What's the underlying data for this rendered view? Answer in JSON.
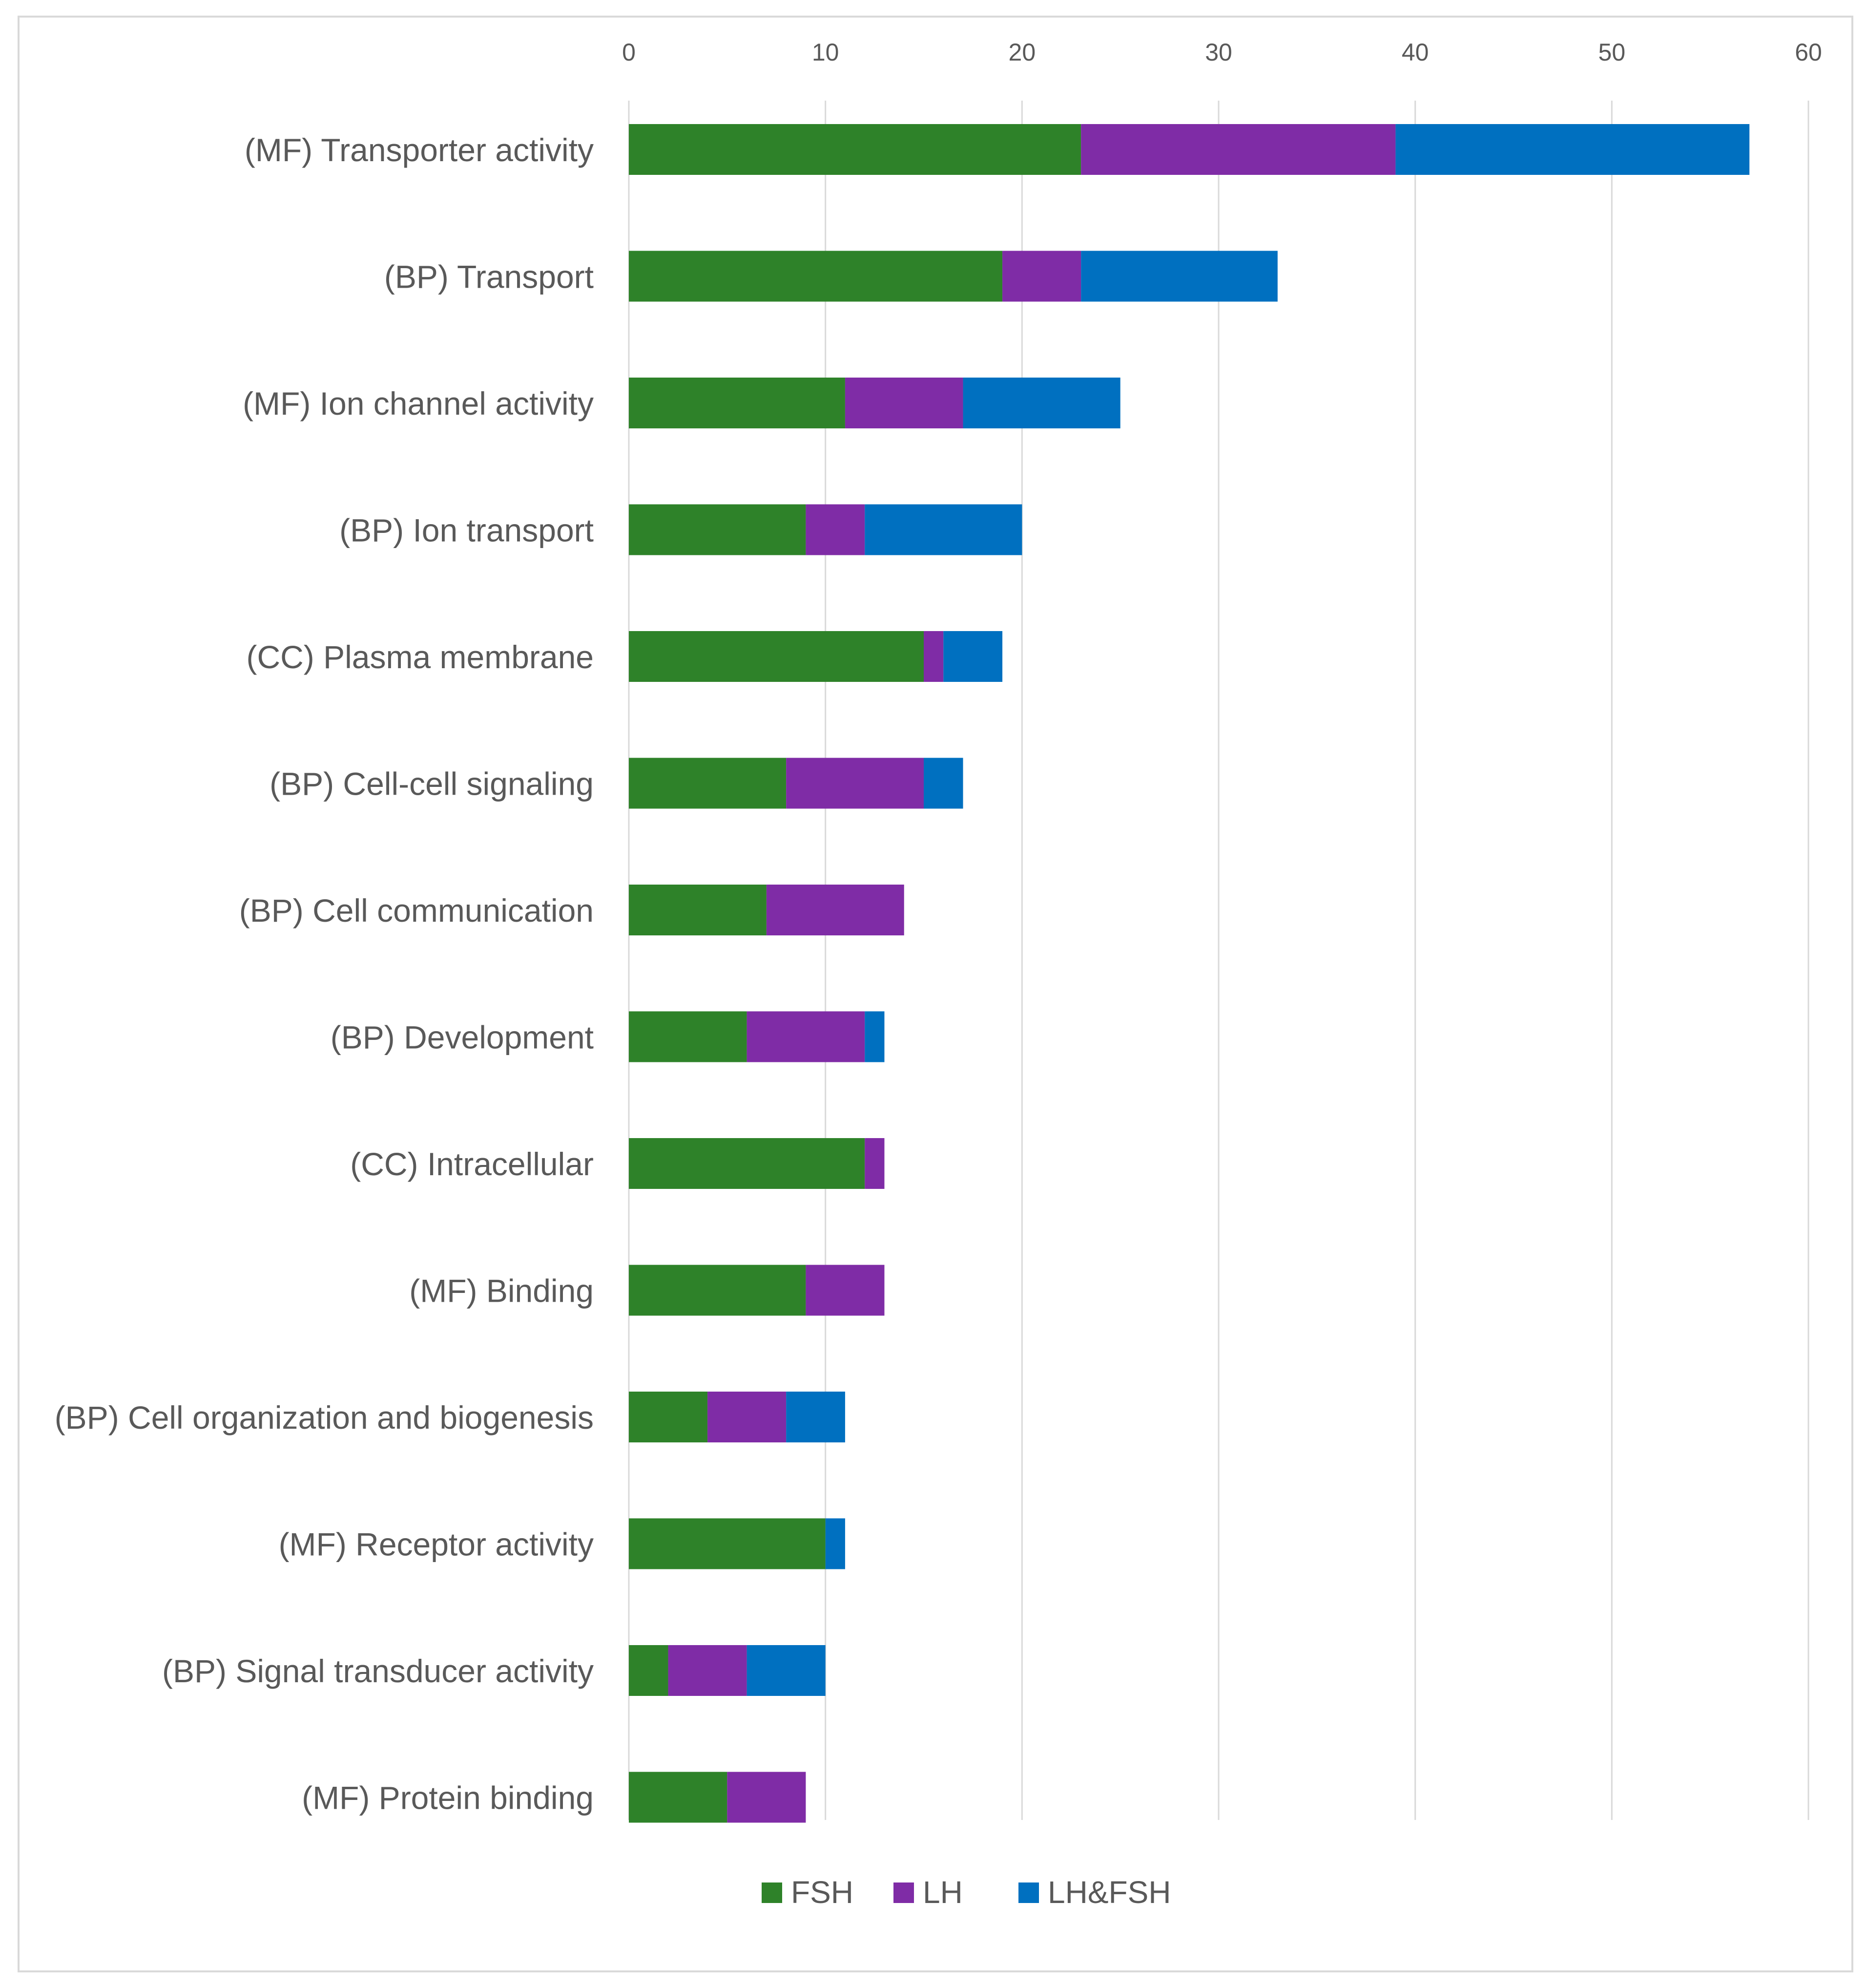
{
  "chart_data": {
    "type": "bar",
    "orientation": "horizontal",
    "stacked": true,
    "title": "",
    "xlabel": "",
    "ylabel": "",
    "xlim": [
      0,
      60
    ],
    "ticks": [
      "0",
      "10",
      "20",
      "30",
      "40",
      "50",
      "60"
    ],
    "tick_values": [
      0,
      10,
      20,
      30,
      40,
      50,
      60
    ],
    "axis_position": "top",
    "grid": true,
    "legend_position": "bottom",
    "categories": [
      "(MF) Transporter activity",
      "(BP) Transport",
      "(MF) Ion channel activity",
      "(BP) Ion transport",
      "(CC) Plasma membrane",
      "(BP) Cell-cell signaling",
      "(BP) Cell communication",
      "(BP) Development",
      "(CC) Intracellular",
      "(MF) Binding",
      "(BP) Cell organization and biogenesis",
      "(MF) Receptor activity",
      "(BP) Signal transducer activity",
      "(MF) Protein binding"
    ],
    "series": [
      {
        "name": "FSH",
        "color": "#2e8229",
        "values": [
          23,
          19,
          11,
          9,
          15,
          8,
          7,
          6,
          12,
          9,
          4,
          10,
          2,
          5
        ]
      },
      {
        "name": "LH",
        "color": "#7f2ca6",
        "values": [
          16,
          4,
          6,
          3,
          1,
          7,
          7,
          6,
          1,
          4,
          4,
          0,
          4,
          4
        ]
      },
      {
        "name": "LH&FSH",
        "color": "#0070c0",
        "values": [
          18,
          10,
          8,
          8,
          3,
          2,
          0,
          1,
          0,
          0,
          3,
          1,
          4,
          0
        ]
      }
    ]
  }
}
